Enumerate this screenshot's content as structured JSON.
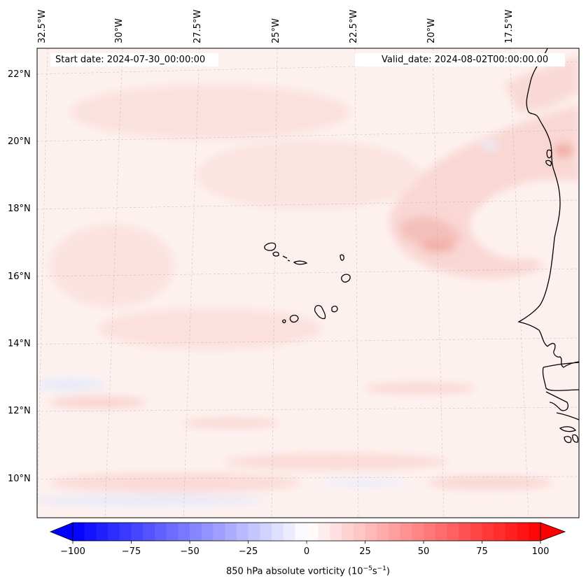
{
  "header": {
    "start_date": "Start date: 2024-07-30_00:00:00",
    "valid_date": "Valid_date: 2024-08-02T00:00:00.00"
  },
  "map": {
    "lon_labels": [
      "32.5°W",
      "30°W",
      "27.5°W",
      "25°W",
      "22.5°W",
      "20°W",
      "17.5°W"
    ],
    "lat_labels": [
      "22°N",
      "20°N",
      "18°N",
      "16°N",
      "14°N",
      "12°N",
      "10°N"
    ]
  },
  "colorbar": {
    "ticks": [
      "−100",
      "−75",
      "−50",
      "−25",
      "0",
      "25",
      "50",
      "75",
      "100"
    ],
    "title_main": "850 hPa absolute vorticity (10",
    "title_exp1": "−5",
    "title_mid": "s",
    "title_exp2": "−1",
    "title_end": ")",
    "min_color": "#0000ff",
    "mid_color": "#ffffff",
    "max_color": "#ff0000"
  },
  "colors": {
    "coastline": "#000000",
    "field_base": "#fdf3f1",
    "positive_light": "#fbe0dd",
    "positive_mid": "#f7c4bf",
    "negative_light": "#e7ecfd"
  }
}
